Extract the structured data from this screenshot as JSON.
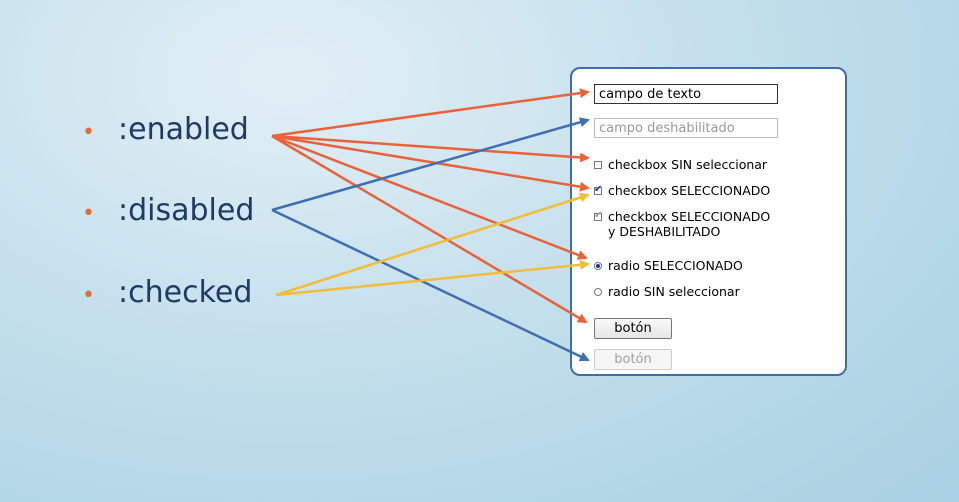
{
  "selectors": [
    {
      "label": ":enabled"
    },
    {
      "label": ":disabled"
    },
    {
      "label": ":checked"
    }
  ],
  "form": {
    "text_enabled": "campo de texto",
    "text_disabled": "campo deshabilitado",
    "checkbox_unchecked": "checkbox SIN seleccionar",
    "checkbox_checked": "checkbox SELECCIONADO",
    "checkbox_checked_disabled_line1": "checkbox SELECCIONADO",
    "checkbox_checked_disabled_line2": "y DESHABILITADO",
    "radio_checked": "radio SELECCIONADO",
    "radio_unchecked": "radio SIN seleccionar",
    "button_enabled": "botón",
    "button_disabled": "botón"
  },
  "colors": {
    "enabled_arrows": "#e8623a",
    "disabled_arrows": "#3e6fb0",
    "checked_arrows": "#f2bd3a",
    "selector_text": "#1f3a66",
    "bullet": "#e07030",
    "panel_border": "#3d6ea8"
  }
}
